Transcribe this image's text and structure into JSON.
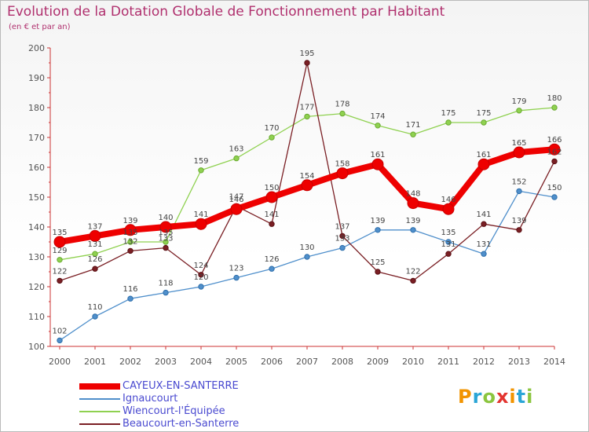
{
  "title": "Evolution de la Dotation Globale de Fonctionnement par Habitant",
  "subtitle": "(en € et par an)",
  "logo": {
    "text": "Proxiti",
    "colors": [
      "#f29400",
      "#2aa5d6",
      "#8bc53f",
      "#e3342f",
      "#f29400",
      "#2aa5d6",
      "#8bc53f"
    ]
  },
  "chart_data": {
    "type": "line",
    "title": "Evolution de la Dotation Globale de Fonctionnement par Habitant",
    "subtitle": "(en € et par an)",
    "x": [
      "2000",
      "2001",
      "2002",
      "2003",
      "2004",
      "2005",
      "2006",
      "2007",
      "2008",
      "2009",
      "2010",
      "2011",
      "2012",
      "2013",
      "2014"
    ],
    "ylim": [
      100,
      200
    ],
    "yticks": [
      100,
      110,
      120,
      130,
      140,
      150,
      160,
      170,
      180,
      190,
      200
    ],
    "grid": false,
    "legend": "bottom-left",
    "series": [
      {
        "name": "CAYEUX-EN-SANTERRE",
        "color": "#ee0000",
        "values": [
          135,
          137,
          139,
          140,
          141,
          146,
          150,
          154,
          158,
          161,
          148,
          146,
          161,
          165,
          166
        ]
      },
      {
        "name": "Ignaucourt",
        "color": "#4f8fcb",
        "values": [
          102,
          110,
          116,
          118,
          120,
          123,
          126,
          130,
          133,
          139,
          139,
          135,
          131,
          152,
          150
        ]
      },
      {
        "name": "Wiencourt-l'Équipée",
        "color": "#8fd150",
        "values": [
          129,
          131,
          135,
          135,
          159,
          163,
          170,
          177,
          178,
          174,
          171,
          175,
          175,
          179,
          180
        ]
      },
      {
        "name": "Beaucourt-en-Santerre",
        "color": "#7a1f24",
        "values": [
          122,
          126,
          132,
          133,
          124,
          147,
          141,
          195,
          137,
          125,
          122,
          131,
          141,
          139,
          162
        ]
      }
    ]
  }
}
